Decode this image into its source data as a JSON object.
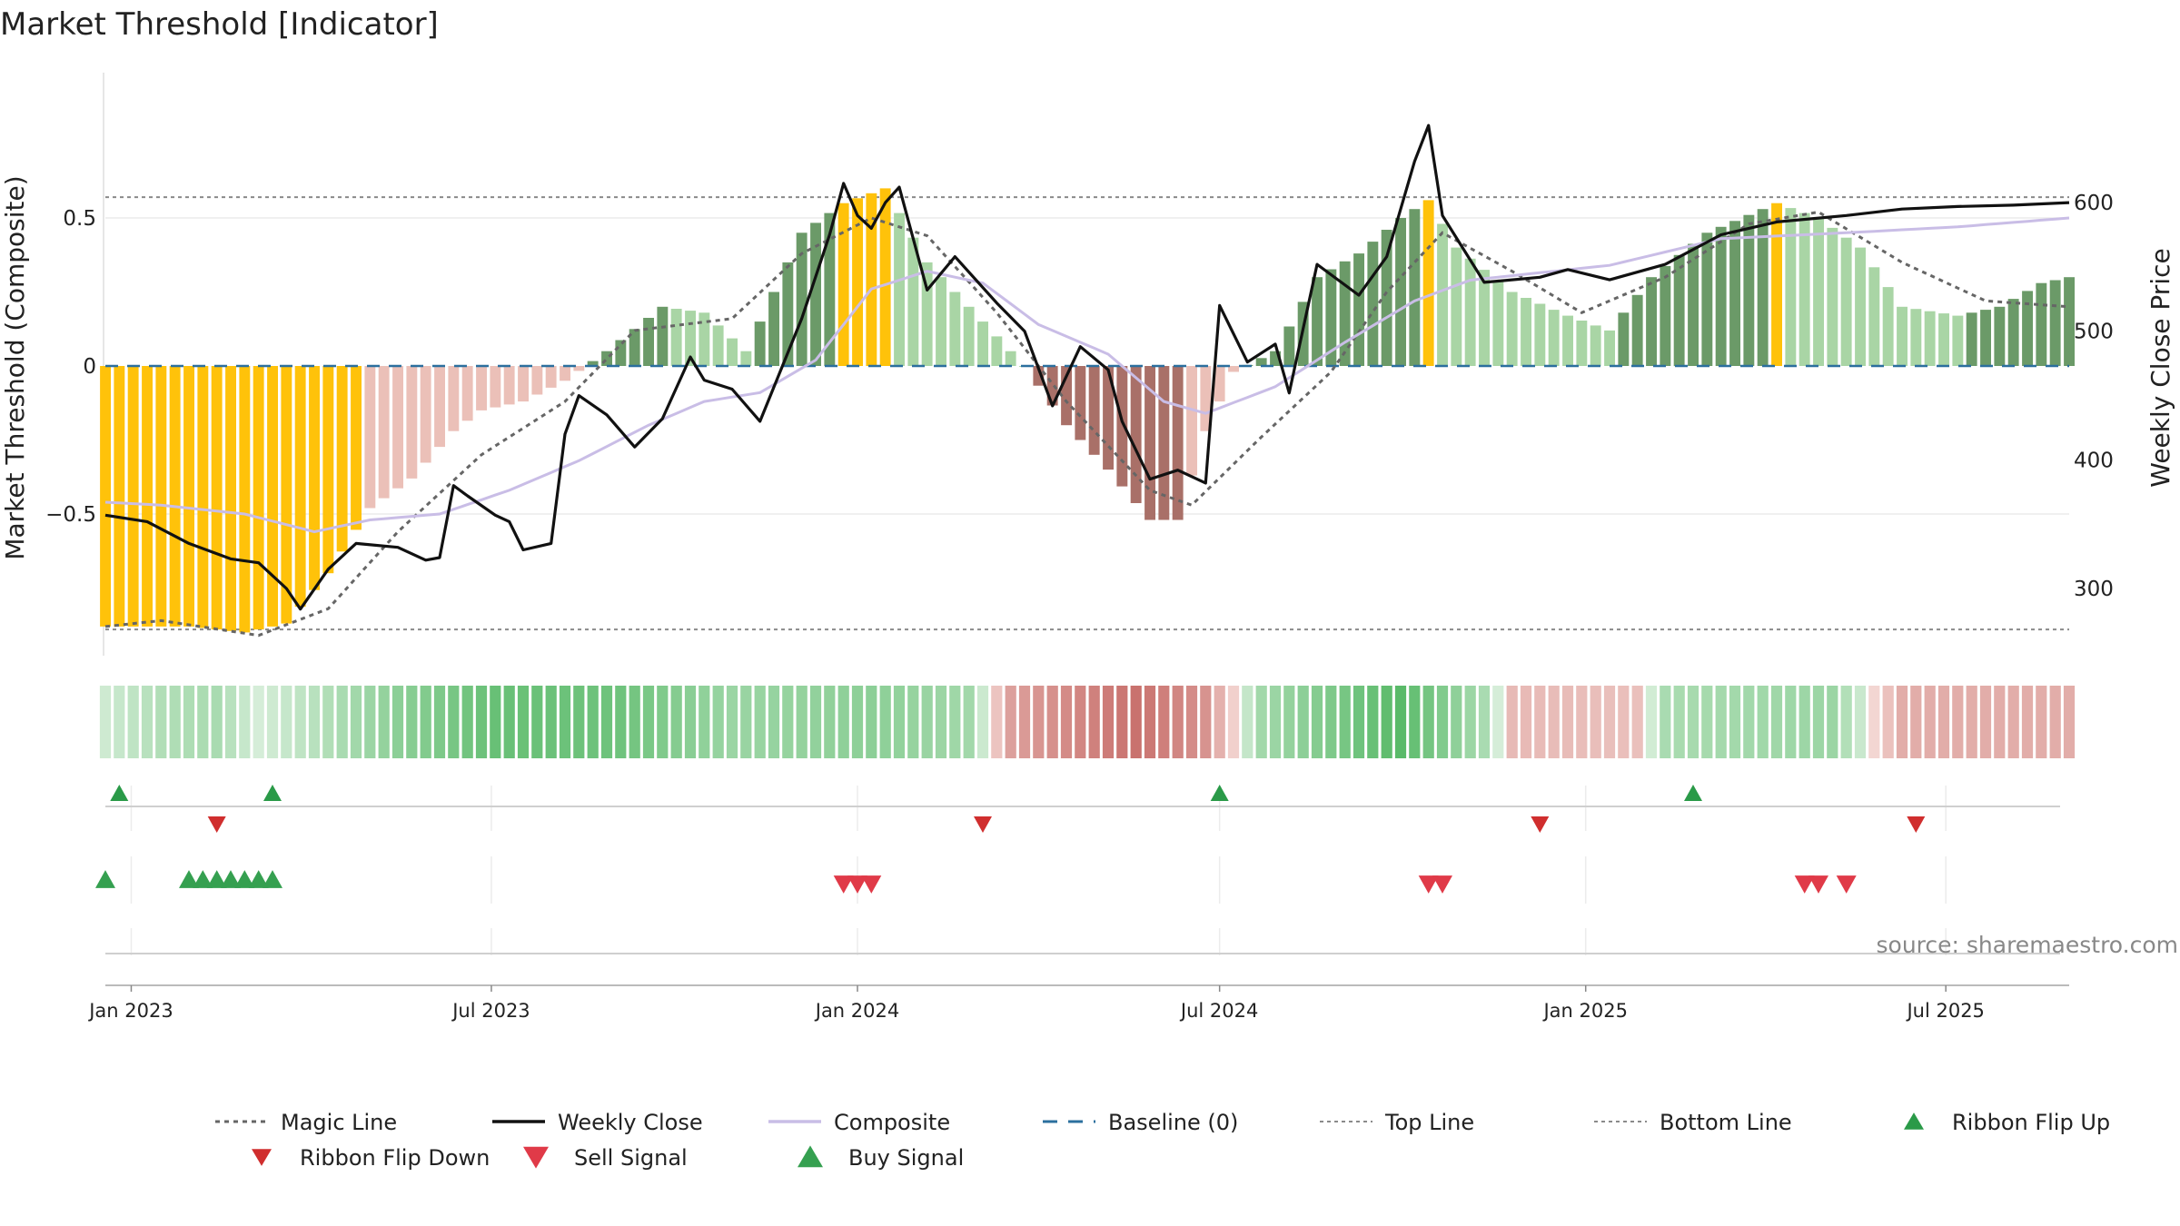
{
  "chart_data": {
    "type": "bar",
    "title": "Market Threshold [Indicator]",
    "ylabel_left": "Market Threshold (Composite)",
    "ylabel_right": "Weekly Close Price",
    "left_ticks": [
      {
        "value": 0.5,
        "label": "0.5"
      },
      {
        "value": 0,
        "label": "0"
      },
      {
        "value": -0.5,
        "label": "−0.5"
      }
    ],
    "right_ticks": [
      {
        "value": 600,
        "label": "600"
      },
      {
        "value": 500,
        "label": "500"
      },
      {
        "value": 400,
        "label": "400"
      },
      {
        "value": 300,
        "label": "300"
      }
    ],
    "ylim_left": [
      -1.0,
      1.0
    ],
    "ylim_right": [
      240,
      690
    ],
    "top_line": 0.57,
    "bottom_line": -0.89,
    "baseline": 0,
    "x_start": "2022-12-19",
    "x_end": "2025-09-01",
    "x_tick_labels": [
      {
        "date": "2023-01-01",
        "label": "Jan 2023"
      },
      {
        "date": "2023-07-01",
        "label": "Jul 2023"
      },
      {
        "date": "2024-01-01",
        "label": "Jan 2024"
      },
      {
        "date": "2024-07-01",
        "label": "Jul 2024"
      },
      {
        "date": "2025-01-01",
        "label": "Jan 2025"
      },
      {
        "date": "2025-07-01",
        "label": "Jul 2025"
      }
    ],
    "composite_keypoints": [
      [
        "2022-12-19",
        -0.88
      ],
      [
        "2023-01-09",
        -0.88
      ],
      [
        "2023-01-30",
        -0.88
      ],
      [
        "2023-02-27",
        -0.9
      ],
      [
        "2023-03-20",
        -0.87
      ],
      [
        "2023-04-10",
        -0.7
      ],
      [
        "2023-05-01",
        -0.48
      ],
      [
        "2023-05-22",
        -0.38
      ],
      [
        "2023-06-12",
        -0.22
      ],
      [
        "2023-06-26",
        -0.15
      ],
      [
        "2023-07-17",
        -0.12
      ],
      [
        "2023-08-07",
        -0.05
      ],
      [
        "2023-08-28",
        0.05
      ],
      [
        "2023-09-25",
        0.2
      ],
      [
        "2023-10-16",
        0.18
      ],
      [
        "2023-11-06",
        0.05
      ],
      [
        "2023-12-04",
        0.45
      ],
      [
        "2023-12-25",
        0.55
      ],
      [
        "2024-01-15",
        0.6
      ],
      [
        "2024-02-05",
        0.35
      ],
      [
        "2024-02-26",
        0.2
      ],
      [
        "2024-03-25",
        0.0
      ],
      [
        "2024-04-15",
        -0.2
      ],
      [
        "2024-05-06",
        -0.35
      ],
      [
        "2024-05-27",
        -0.52
      ],
      [
        "2024-06-10",
        -0.52
      ],
      [
        "2024-06-24",
        -0.22
      ],
      [
        "2024-07-08",
        -0.02
      ],
      [
        "2024-07-29",
        0.05
      ],
      [
        "2024-08-19",
        0.3
      ],
      [
        "2024-09-09",
        0.38
      ],
      [
        "2024-09-30",
        0.5
      ],
      [
        "2024-10-14",
        0.56
      ],
      [
        "2024-10-28",
        0.4
      ],
      [
        "2024-11-25",
        0.25
      ],
      [
        "2024-12-23",
        0.17
      ],
      [
        "2025-01-13",
        0.12
      ],
      [
        "2025-02-03",
        0.3
      ],
      [
        "2025-03-03",
        0.45
      ],
      [
        "2025-04-07",
        0.55
      ],
      [
        "2025-04-28",
        0.5
      ],
      [
        "2025-05-19",
        0.4
      ],
      [
        "2025-06-09",
        0.2
      ],
      [
        "2025-07-07",
        0.17
      ],
      [
        "2025-07-28",
        0.2
      ],
      [
        "2025-08-18",
        0.28
      ],
      [
        "2025-09-01",
        0.3
      ]
    ],
    "weekly_close_keypoints": [
      [
        "2022-12-19",
        357
      ],
      [
        "2023-01-09",
        352
      ],
      [
        "2023-01-30",
        335
      ],
      [
        "2023-02-20",
        323
      ],
      [
        "2023-03-06",
        320
      ],
      [
        "2023-03-20",
        300
      ],
      [
        "2023-03-27",
        284
      ],
      [
        "2023-04-10",
        315
      ],
      [
        "2023-04-24",
        335
      ],
      [
        "2023-05-15",
        332
      ],
      [
        "2023-05-29",
        322
      ],
      [
        "2023-06-05",
        324
      ],
      [
        "2023-06-12",
        380
      ],
      [
        "2023-06-19",
        372
      ],
      [
        "2023-07-03",
        357
      ],
      [
        "2023-07-10",
        352
      ],
      [
        "2023-07-17",
        330
      ],
      [
        "2023-07-31",
        335
      ],
      [
        "2023-08-07",
        420
      ],
      [
        "2023-08-14",
        450
      ],
      [
        "2023-08-28",
        435
      ],
      [
        "2023-09-11",
        410
      ],
      [
        "2023-09-25",
        432
      ],
      [
        "2023-10-09",
        480
      ],
      [
        "2023-10-16",
        462
      ],
      [
        "2023-10-30",
        455
      ],
      [
        "2023-11-13",
        430
      ],
      [
        "2023-12-04",
        510
      ],
      [
        "2023-12-18",
        575
      ],
      [
        "2023-12-25",
        615
      ],
      [
        "2024-01-01",
        590
      ],
      [
        "2024-01-08",
        580
      ],
      [
        "2024-01-15",
        600
      ],
      [
        "2024-01-22",
        612
      ],
      [
        "2024-02-05",
        532
      ],
      [
        "2024-02-19",
        558
      ],
      [
        "2024-03-11",
        522
      ],
      [
        "2024-03-25",
        500
      ],
      [
        "2024-04-08",
        442
      ],
      [
        "2024-04-22",
        488
      ],
      [
        "2024-05-06",
        470
      ],
      [
        "2024-05-13",
        430
      ],
      [
        "2024-05-27",
        385
      ],
      [
        "2024-06-10",
        392
      ],
      [
        "2024-06-24",
        382
      ],
      [
        "2024-07-01",
        520
      ],
      [
        "2024-07-15",
        476
      ],
      [
        "2024-07-29",
        490
      ],
      [
        "2024-08-05",
        452
      ],
      [
        "2024-08-19",
        552
      ],
      [
        "2024-09-09",
        528
      ],
      [
        "2024-09-23",
        558
      ],
      [
        "2024-10-07",
        632
      ],
      [
        "2024-10-14",
        660
      ],
      [
        "2024-10-21",
        590
      ],
      [
        "2024-11-11",
        538
      ],
      [
        "2024-12-09",
        542
      ],
      [
        "2024-12-23",
        548
      ],
      [
        "2025-01-13",
        540
      ],
      [
        "2025-02-10",
        552
      ],
      [
        "2025-03-10",
        575
      ],
      [
        "2025-04-07",
        585
      ],
      [
        "2025-05-12",
        590
      ],
      [
        "2025-06-09",
        595
      ],
      [
        "2025-07-07",
        597
      ],
      [
        "2025-08-04",
        598
      ],
      [
        "2025-09-01",
        600
      ]
    ],
    "composite_line_keypoints": [
      [
        "2022-12-19",
        -0.46
      ],
      [
        "2023-01-16",
        -0.47
      ],
      [
        "2023-02-27",
        -0.5
      ],
      [
        "2023-04-03",
        -0.56
      ],
      [
        "2023-05-01",
        -0.52
      ],
      [
        "2023-06-05",
        -0.5
      ],
      [
        "2023-07-10",
        -0.42
      ],
      [
        "2023-08-14",
        -0.32
      ],
      [
        "2023-09-18",
        -0.2
      ],
      [
        "2023-10-16",
        -0.12
      ],
      [
        "2023-11-13",
        -0.09
      ],
      [
        "2023-12-11",
        0.02
      ],
      [
        "2024-01-08",
        0.26
      ],
      [
        "2024-02-05",
        0.32
      ],
      [
        "2024-03-04",
        0.28
      ],
      [
        "2024-04-01",
        0.14
      ],
      [
        "2024-05-06",
        0.04
      ],
      [
        "2024-06-03",
        -0.12
      ],
      [
        "2024-06-24",
        -0.16
      ],
      [
        "2024-07-29",
        -0.07
      ],
      [
        "2024-09-02",
        0.08
      ],
      [
        "2024-10-07",
        0.22
      ],
      [
        "2024-11-04",
        0.29
      ],
      [
        "2024-12-02",
        0.31
      ],
      [
        "2025-01-13",
        0.34
      ],
      [
        "2025-03-10",
        0.43
      ],
      [
        "2025-05-12",
        0.45
      ],
      [
        "2025-07-07",
        0.47
      ],
      [
        "2025-09-01",
        0.5
      ]
    ],
    "magic_line_keypoints": [
      [
        "2022-12-19",
        -0.88
      ],
      [
        "2023-01-16",
        -0.86
      ],
      [
        "2023-03-06",
        -0.91
      ],
      [
        "2023-04-10",
        -0.82
      ],
      [
        "2023-05-15",
        -0.56
      ],
      [
        "2023-06-26",
        -0.3
      ],
      [
        "2023-08-07",
        -0.12
      ],
      [
        "2023-09-11",
        0.12
      ],
      [
        "2023-10-30",
        0.16
      ],
      [
        "2023-12-04",
        0.38
      ],
      [
        "2024-01-08",
        0.5
      ],
      [
        "2024-02-05",
        0.44
      ],
      [
        "2024-03-11",
        0.18
      ],
      [
        "2024-04-15",
        -0.12
      ],
      [
        "2024-05-27",
        -0.42
      ],
      [
        "2024-06-17",
        -0.47
      ],
      [
        "2024-07-22",
        -0.24
      ],
      [
        "2024-08-26",
        -0.02
      ],
      [
        "2024-09-23",
        0.25
      ],
      [
        "2024-10-21",
        0.45
      ],
      [
        "2024-11-25",
        0.32
      ],
      [
        "2024-12-30",
        0.18
      ],
      [
        "2025-02-10",
        0.3
      ],
      [
        "2025-03-24",
        0.48
      ],
      [
        "2025-04-28",
        0.52
      ],
      [
        "2025-06-09",
        0.35
      ],
      [
        "2025-07-21",
        0.22
      ],
      [
        "2025-09-01",
        0.2
      ]
    ],
    "ribbon_keypoints": [
      [
        "2022-12-19",
        0.1
      ],
      [
        "2023-01-16",
        0.3
      ],
      [
        "2023-02-13",
        0.35
      ],
      [
        "2023-03-06",
        0.05
      ],
      [
        "2023-04-03",
        0.25
      ],
      [
        "2023-05-15",
        0.55
      ],
      [
        "2023-07-03",
        0.8
      ],
      [
        "2023-09-04",
        0.75
      ],
      [
        "2023-10-30",
        0.45
      ],
      [
        "2024-01-08",
        0.55
      ],
      [
        "2024-02-26",
        0.4
      ],
      [
        "2024-03-18",
        -0.45
      ],
      [
        "2024-05-20",
        -0.8
      ],
      [
        "2024-06-24",
        -0.55
      ],
      [
        "2024-07-22",
        0.4
      ],
      [
        "2024-09-30",
        0.9
      ],
      [
        "2024-11-11",
        0.35
      ],
      [
        "2024-11-25",
        -0.25
      ],
      [
        "2025-01-27",
        -0.2
      ],
      [
        "2025-02-10",
        0.35
      ],
      [
        "2025-05-05",
        0.45
      ],
      [
        "2025-06-09",
        -0.35
      ],
      [
        "2025-09-01",
        -0.35
      ]
    ],
    "signals": {
      "ribbon_flip_up": [
        "2022-12-26",
        "2023-03-13",
        "2024-07-01",
        "2025-02-24"
      ],
      "ribbon_flip_down": [
        "2023-02-13",
        "2024-03-04",
        "2024-12-09",
        "2025-06-16"
      ],
      "sell_signal": [
        "2023-12-25",
        "2024-01-01",
        "2024-01-08",
        "2024-10-14",
        "2024-10-21",
        "2025-04-21",
        "2025-04-28",
        "2025-05-12"
      ],
      "buy_signal": [
        "2022-12-19",
        "2023-01-30",
        "2023-02-06",
        "2023-02-13",
        "2023-02-20",
        "2023-02-27",
        "2023-03-06",
        "2023-03-13"
      ]
    },
    "colors": {
      "extreme": "#ffc20a",
      "pos_strong": "#6b9a68",
      "pos_weak": "#a9d5a5",
      "neg_strong": "#a97068",
      "neg_weak": "#ebc0b8",
      "weekly_close": "#111111",
      "composite": "#c9bde6",
      "magic_line": "#666666",
      "baseline": "#2b6f9e",
      "flip_up": "#2a9a48",
      "flip_down": "#d02e2e",
      "sell": "#e03a48",
      "buy": "#35a050"
    },
    "legend": [
      {
        "key": "magic",
        "label": "Magic Line"
      },
      {
        "key": "close",
        "label": "Weekly Close"
      },
      {
        "key": "composite",
        "label": "Composite"
      },
      {
        "key": "baseline",
        "label": "Baseline (0)"
      },
      {
        "key": "top",
        "label": "Top Line"
      },
      {
        "key": "bottom",
        "label": "Bottom Line"
      },
      {
        "key": "flipup",
        "label": "Ribbon Flip Up"
      },
      {
        "key": "flipdown",
        "label": "Ribbon Flip Down"
      },
      {
        "key": "sell",
        "label": "Sell Signal"
      },
      {
        "key": "buy",
        "label": "Buy Signal"
      }
    ],
    "source": "source: sharemaestro.com"
  }
}
